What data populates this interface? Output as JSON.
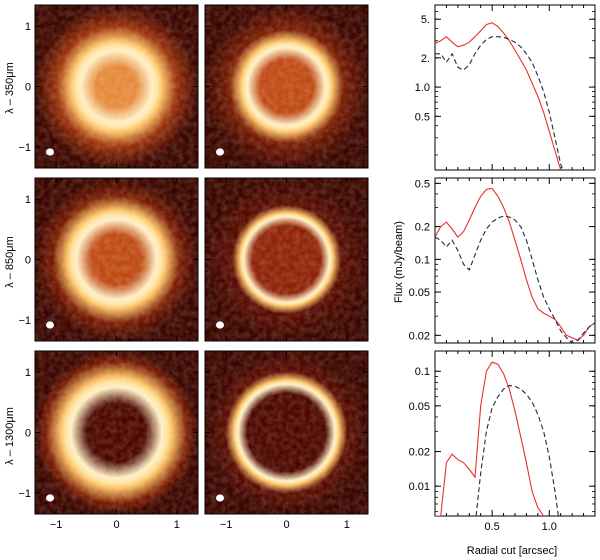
{
  "rows": [
    {
      "ylabel": "λ – 350μm"
    },
    {
      "ylabel": "λ – 850μm"
    },
    {
      "ylabel": "λ – 1300μm"
    }
  ],
  "image_axes": {
    "xticks": [
      "−1",
      "0",
      "1"
    ],
    "yticks": [
      "1",
      "0",
      "−1"
    ]
  },
  "chart_data": {
    "type": "line",
    "ylabel": "Flux (mJy/beam)",
    "xlabel": "Radial cut [arcsec]",
    "xlim": [
      0.0,
      1.4
    ],
    "yscale": "log",
    "xticks": [
      0.5,
      1.0
    ],
    "xticklabels": [
      "0.5",
      "1.0"
    ],
    "grid": false,
    "line_styles": {
      "observed": "solid",
      "model": "dashed"
    },
    "colors": {
      "observed": "#e8302a",
      "model": "#1f2a44"
    },
    "panels": [
      {
        "ylim": [
          0.14,
          7.0
        ],
        "yticks": [
          5.0,
          2.0,
          1.0,
          0.5
        ],
        "yticklabels": [
          "5.",
          "2.",
          "1.0",
          "0.5"
        ],
        "series": [
          {
            "style": "solid",
            "x": [
              0.0,
              0.05,
              0.1,
              0.15,
              0.2,
              0.25,
              0.3,
              0.35,
              0.4,
              0.45,
              0.5,
              0.55,
              0.6,
              0.65,
              0.7,
              0.75,
              0.8,
              0.85,
              0.9,
              0.95,
              1.0,
              1.05,
              1.1
            ],
            "y": [
              2.8,
              3.0,
              3.3,
              2.9,
              2.6,
              2.7,
              2.9,
              3.3,
              3.8,
              4.4,
              4.6,
              4.2,
              3.6,
              3.0,
              2.4,
              1.9,
              1.5,
              1.1,
              0.8,
              0.55,
              0.35,
              0.22,
              0.14
            ]
          },
          {
            "style": "dashed",
            "x": [
              0.0,
              0.05,
              0.1,
              0.15,
              0.2,
              0.25,
              0.3,
              0.35,
              0.4,
              0.45,
              0.5,
              0.55,
              0.6,
              0.65,
              0.7,
              0.75,
              0.8,
              0.85,
              0.9,
              0.95,
              1.0,
              1.05,
              1.1,
              1.12
            ],
            "y": [
              2.2,
              2.2,
              1.8,
              2.2,
              1.6,
              1.5,
              1.7,
              2.2,
              2.7,
              3.1,
              3.3,
              3.3,
              3.25,
              3.1,
              2.9,
              2.6,
              2.2,
              1.8,
              1.3,
              0.9,
              0.55,
              0.3,
              0.16,
              0.14
            ]
          }
        ]
      },
      {
        "ylim": [
          0.017,
          0.56
        ],
        "yticks": [
          0.5,
          0.2,
          0.1,
          0.05,
          0.02
        ],
        "yticklabels": [
          "0.5",
          "0.2",
          "0.1",
          "0.05",
          "0.02"
        ],
        "series": [
          {
            "style": "solid",
            "x": [
              0.0,
              0.05,
              0.1,
              0.15,
              0.2,
              0.25,
              0.3,
              0.35,
              0.4,
              0.45,
              0.5,
              0.55,
              0.6,
              0.65,
              0.7,
              0.75,
              0.8,
              0.85,
              0.9,
              0.95,
              1.0,
              1.05,
              1.1,
              1.15,
              1.2,
              1.25,
              1.3,
              1.35,
              1.4
            ],
            "y": [
              0.16,
              0.2,
              0.22,
              0.19,
              0.16,
              0.18,
              0.23,
              0.3,
              0.38,
              0.44,
              0.45,
              0.38,
              0.3,
              0.22,
              0.15,
              0.1,
              0.065,
              0.045,
              0.035,
              0.032,
              0.03,
              0.028,
              0.024,
              0.02,
              0.019,
              0.018,
              0.02,
              0.024,
              0.026
            ]
          },
          {
            "style": "dashed",
            "x": [
              0.0,
              0.05,
              0.1,
              0.15,
              0.2,
              0.25,
              0.3,
              0.35,
              0.4,
              0.45,
              0.5,
              0.55,
              0.6,
              0.65,
              0.7,
              0.75,
              0.8,
              0.85,
              0.9,
              0.95,
              1.0,
              1.05,
              1.1,
              1.15,
              1.2,
              1.25,
              1.3,
              1.35,
              1.4
            ],
            "y": [
              0.16,
              0.15,
              0.13,
              0.15,
              0.12,
              0.09,
              0.08,
              0.11,
              0.15,
              0.19,
              0.22,
              0.24,
              0.25,
              0.245,
              0.23,
              0.2,
              0.15,
              0.1,
              0.065,
              0.045,
              0.035,
              0.028,
              0.022,
              0.019,
              0.017,
              0.018,
              0.021,
              0.024,
              0.026
            ]
          }
        ]
      },
      {
        "ylim": [
          0.0055,
          0.15
        ],
        "yticks": [
          0.1,
          0.05,
          0.02,
          0.01
        ],
        "yticklabels": [
          "0.1",
          "0.05",
          "0.02",
          "0.01"
        ],
        "series": [
          {
            "style": "solid",
            "x": [
              0.0,
              0.05,
              0.1,
              0.15,
              0.2,
              0.25,
              0.3,
              0.35,
              0.4,
              0.45,
              0.5,
              0.55,
              0.6,
              0.65,
              0.7,
              0.75,
              0.8,
              0.85,
              0.9,
              0.95
            ],
            "y": [
              0.0055,
              0.0055,
              0.016,
              0.019,
              0.017,
              0.016,
              0.014,
              0.012,
              0.05,
              0.1,
              0.12,
              0.115,
              0.095,
              0.07,
              0.045,
              0.027,
              0.016,
              0.009,
              0.0065,
              0.0055
            ]
          },
          {
            "style": "dashed",
            "x": [
              0.36,
              0.4,
              0.45,
              0.5,
              0.55,
              0.6,
              0.65,
              0.7,
              0.75,
              0.8,
              0.85,
              0.9,
              0.95,
              1.0,
              1.05,
              1.08
            ],
            "y": [
              0.0055,
              0.013,
              0.03,
              0.048,
              0.06,
              0.07,
              0.075,
              0.074,
              0.07,
              0.063,
              0.054,
              0.042,
              0.03,
              0.018,
              0.009,
              0.0055
            ]
          }
        ]
      }
    ]
  },
  "rings": {
    "rows": [
      {
        "left": {
          "r": 0.5,
          "w": 0.4,
          "inner": 0.55,
          "bg": 0.3
        },
        "right": {
          "r": 0.52,
          "w": 0.28,
          "inner": 0.35,
          "bg": 0.22
        }
      },
      {
        "left": {
          "r": 0.55,
          "w": 0.38,
          "inner": 0.45,
          "bg": 0.18
        },
        "right": {
          "r": 0.55,
          "w": 0.16,
          "inner": 0.2,
          "bg": 0.12
        }
      },
      {
        "left": {
          "r": 0.62,
          "w": 0.42,
          "inner": 0.1,
          "bg": 0.2
        },
        "right": {
          "r": 0.62,
          "w": 0.18,
          "inner": 0.08,
          "bg": 0.12
        }
      }
    ]
  }
}
